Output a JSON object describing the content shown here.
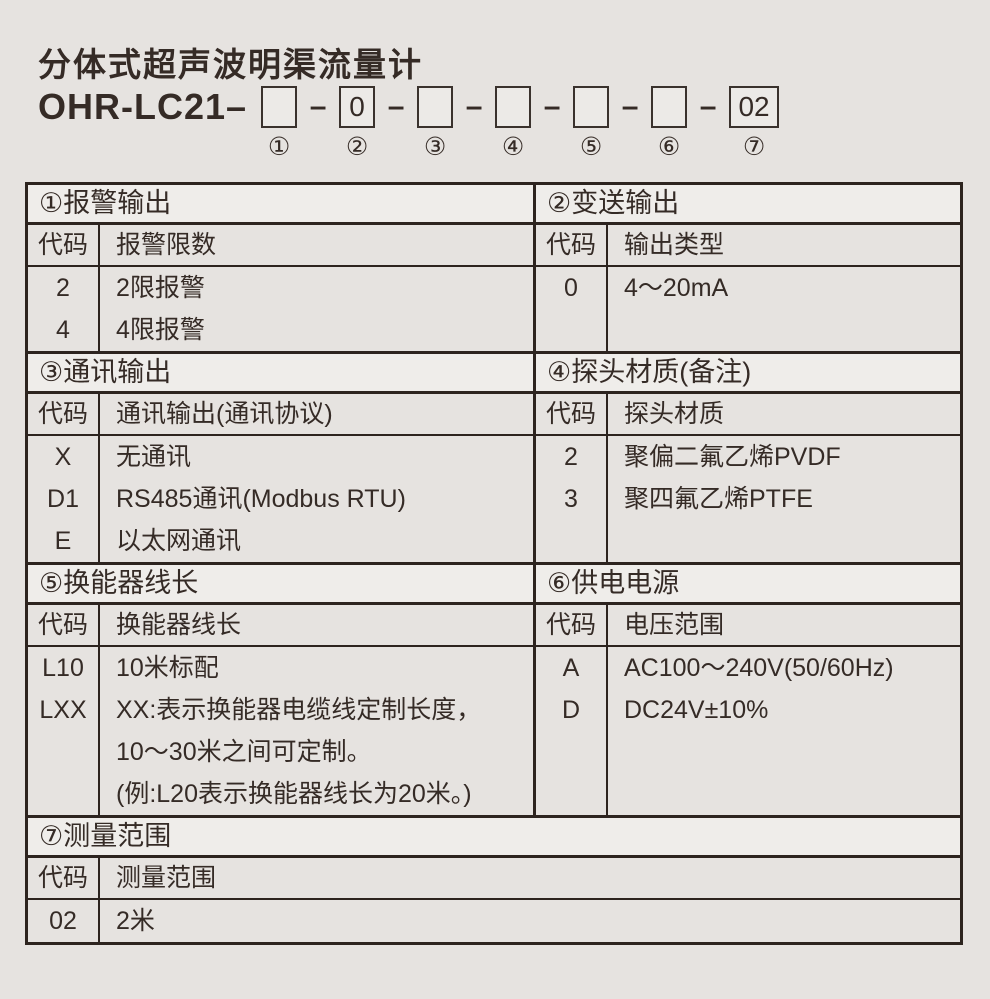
{
  "header": {
    "title": "分体式超声波明渠流量计",
    "model_prefix": "OHR-LC21–",
    "separator": "–",
    "positions": [
      {
        "num": "①",
        "value": ""
      },
      {
        "num": "②",
        "value": "0"
      },
      {
        "num": "③",
        "value": ""
      },
      {
        "num": "④",
        "value": ""
      },
      {
        "num": "⑤",
        "value": ""
      },
      {
        "num": "⑥",
        "value": ""
      },
      {
        "num": "⑦",
        "value": "02"
      }
    ]
  },
  "table": {
    "code_header": "代码",
    "sections": [
      {
        "title": "①报警输出",
        "desc_header": "报警限数",
        "rows": [
          {
            "code": "2",
            "desc": "2限报警"
          },
          {
            "code": "4",
            "desc": "4限报警"
          }
        ]
      },
      {
        "title": "②变送输出",
        "desc_header": "输出类型",
        "rows": [
          {
            "code": "0",
            "desc": "4～20mA"
          }
        ]
      },
      {
        "title": "③通讯输出",
        "desc_header": "通讯输出(通讯协议)",
        "rows": [
          {
            "code": "X",
            "desc": "无通讯"
          },
          {
            "code": "D1",
            "desc": "RS485通讯(Modbus RTU)"
          },
          {
            "code": "E",
            "desc": "以太网通讯"
          }
        ]
      },
      {
        "title": "④探头材质(备注)",
        "desc_header": "探头材质",
        "rows": [
          {
            "code": "2",
            "desc": "聚偏二氟乙烯PVDF"
          },
          {
            "code": "3",
            "desc": "聚四氟乙烯PTFE"
          }
        ]
      },
      {
        "title": "⑤换能器线长",
        "desc_header": "换能器线长",
        "rows": [
          {
            "code": "L10",
            "desc": "10米标配"
          },
          {
            "code": "LXX",
            "desc": "XX:表示换能器电缆线定制长度，"
          },
          {
            "code": "",
            "desc": "10～30米之间可定制。"
          },
          {
            "code": "",
            "desc": "(例:L20表示换能器线长为20米。)"
          }
        ]
      },
      {
        "title": "⑥供电电源",
        "desc_header": "电压范围",
        "rows": [
          {
            "code": "A",
            "desc": "AC100～240V(50/60Hz)"
          },
          {
            "code": "D",
            "desc": "DC24V±10%"
          }
        ]
      },
      {
        "title": "⑦测量范围",
        "desc_header": "测量范围",
        "rows": [
          {
            "code": "02",
            "desc": "2米"
          }
        ]
      }
    ]
  }
}
